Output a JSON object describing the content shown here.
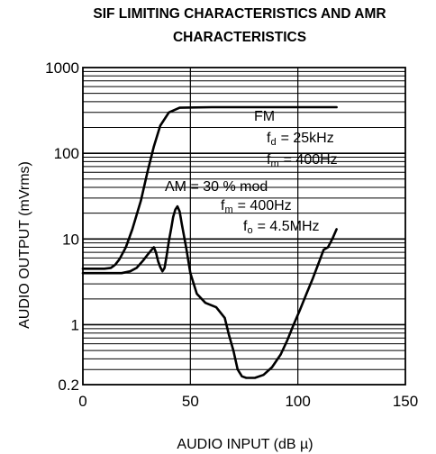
{
  "chart_data": {
    "type": "line",
    "title_line1": "SIF LIMITING CHARACTERISTICS AND AMR",
    "title_line2": "CHARACTERISTICS",
    "xlabel": "AUDIO INPUT (dB µ)",
    "ylabel": "AUDIO OUTPUT (mVrms)",
    "xlim": [
      0,
      150
    ],
    "ylim": [
      0.2,
      1000
    ],
    "yscale": "log",
    "x_ticks": [
      0,
      50,
      100,
      150
    ],
    "x_tick_labels": [
      "0",
      "50",
      "100",
      "150"
    ],
    "y_ticks": [
      0.2,
      1,
      10,
      100,
      1000
    ],
    "y_tick_labels": [
      "0.2",
      "1",
      "10",
      "100",
      "1000"
    ],
    "grid": true,
    "series": [
      {
        "name": "FM",
        "x": [
          0,
          10,
          13,
          15,
          17,
          20,
          23,
          27,
          30,
          33,
          36,
          40,
          45,
          60,
          80,
          100,
          118
        ],
        "y": [
          4.5,
          4.5,
          4.6,
          5,
          5.8,
          8,
          13,
          28,
          60,
          120,
          210,
          300,
          340,
          345,
          345,
          345,
          345
        ]
      },
      {
        "name": "AM",
        "x": [
          0,
          5,
          10,
          15,
          18,
          22,
          25,
          28,
          30,
          32,
          33,
          34,
          35,
          36,
          37,
          38,
          39,
          40,
          41,
          42,
          43,
          44,
          45,
          46,
          48,
          50,
          53,
          57,
          62,
          66,
          68,
          70,
          72,
          74,
          76,
          80,
          84,
          88,
          92,
          95,
          98,
          101,
          104,
          107,
          110,
          112,
          114,
          116,
          118
        ],
        "y": [
          4,
          4,
          4,
          4,
          4,
          4.2,
          4.6,
          5.6,
          6.5,
          7.5,
          8,
          7,
          5.5,
          4.7,
          4.2,
          4.6,
          6.5,
          9.5,
          13,
          18,
          22,
          24,
          21,
          15,
          8,
          4,
          2.3,
          1.8,
          1.6,
          1.2,
          0.75,
          0.5,
          0.3,
          0.25,
          0.24,
          0.24,
          0.26,
          0.32,
          0.45,
          0.65,
          1.0,
          1.5,
          2.3,
          3.5,
          5.5,
          7.5,
          8,
          10,
          13
        ]
      }
    ],
    "annotations": {
      "fm_label": "FM",
      "fd_label": "f",
      "fd_sub": "d",
      "fd_value": "= 25kHz",
      "fm_mod_label": "f",
      "fm_mod_sub": "m",
      "fm_mod_value": "= 400Hz",
      "am_label": "AM = 30 % mod",
      "am_fm_label": "f",
      "am_fm_sub": "m",
      "am_fm_value": "= 400Hz",
      "fo_label": "f",
      "fo_sub": "o",
      "fo_value": "= 4.5MHz"
    }
  }
}
